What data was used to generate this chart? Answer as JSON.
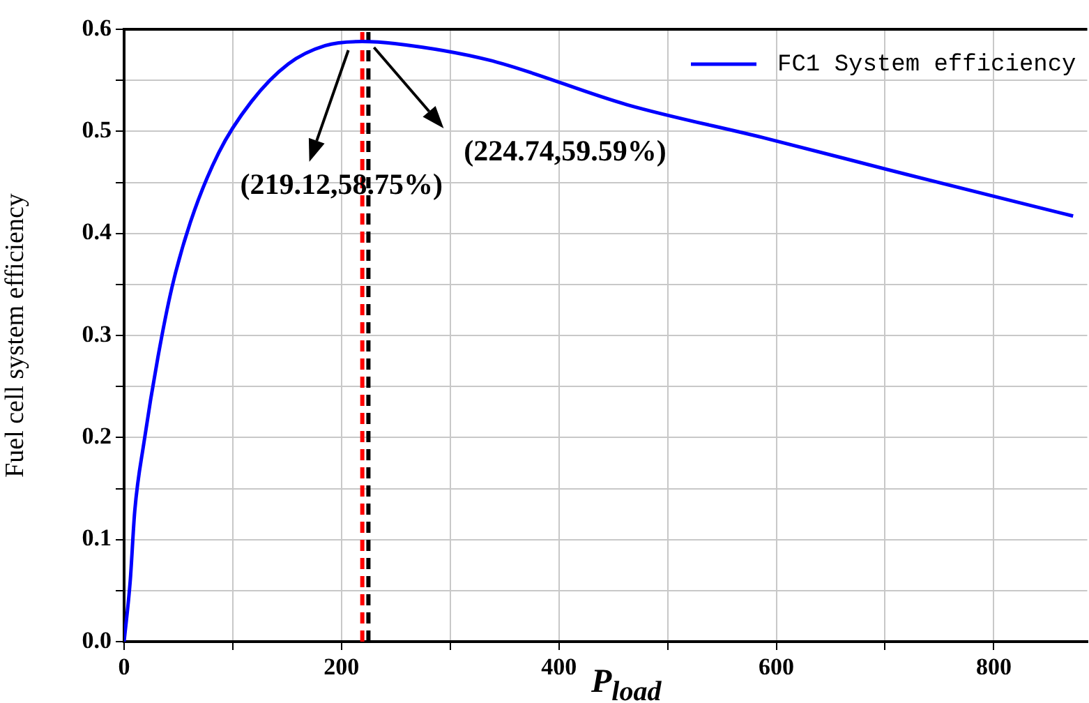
{
  "chart_data": {
    "type": "line",
    "xlabel": "P$_{load}$",
    "ylabel": "Fuel cell system efficiency",
    "xlim": [
      0,
      886
    ],
    "ylim": [
      0,
      0.6
    ],
    "xticks": [
      0,
      {
        "value": 100,
        "label": null
      },
      200,
      {
        "value": 300,
        "label": null
      },
      400,
      {
        "value": 500,
        "label": null
      },
      600,
      {
        "value": 700,
        "label": null
      },
      800
    ],
    "yticks": [
      {
        "value": 0,
        "label": "0.0"
      },
      {
        "value": 0.05,
        "label": null
      },
      0.1,
      {
        "value": 0.15,
        "label": null
      },
      0.2,
      {
        "value": 0.25,
        "label": null
      },
      0.3,
      {
        "value": 0.35,
        "label": null
      },
      0.4,
      {
        "value": 0.45,
        "label": null
      },
      0.5,
      {
        "value": 0.55,
        "label": null
      },
      0.6
    ],
    "grid": true,
    "legend": "top right",
    "series": [
      {
        "name": "FC1 System efficiency",
        "color": "#0000ff",
        "x": [
          0,
          5.6,
          9.8,
          18.4,
          31,
          44,
          61,
          87,
          117,
          151,
          185,
          219,
          249,
          335,
          463,
          591,
          719,
          873
        ],
        "values": [
          0,
          0.059,
          0.128,
          0.196,
          0.278,
          0.347,
          0.411,
          0.479,
          0.529,
          0.566,
          0.584,
          0.588,
          0.586,
          0.57,
          0.526,
          0.493,
          0.458,
          0.417
        ]
      }
    ],
    "ref_lines": [
      {
        "axis": "x",
        "value": 219.12,
        "color": "#ff0000",
        "line_style": "dashed"
      },
      {
        "axis": "x",
        "value": 224.74,
        "color": "#000000",
        "line_style": "dashed"
      }
    ],
    "annotations": [
      "(219.12,58.75%)",
      "(224.74,59.59%)"
    ]
  }
}
